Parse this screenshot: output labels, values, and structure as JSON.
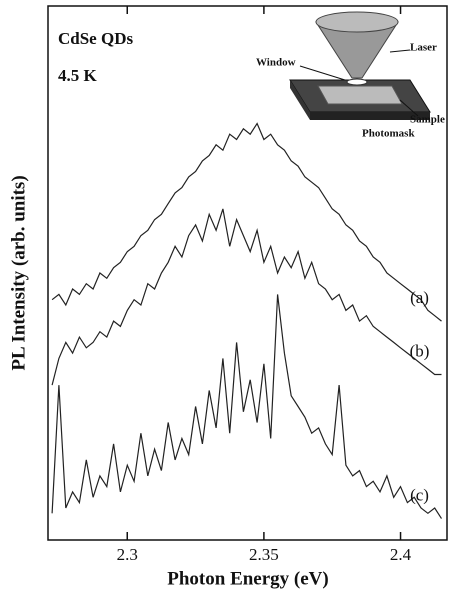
{
  "chart_data": {
    "type": "line",
    "annotations": {
      "sample": "CdSe QDs",
      "temperature": "4.5 K"
    },
    "inset": {
      "window": "Window",
      "laser": "Laser",
      "sample": "Sample",
      "photomask": "Photomask"
    },
    "xlabel": "Photon Energy (eV)",
    "ylabel": "PL Intensity (arb. units)",
    "xlim": [
      2.271,
      2.417
    ],
    "xticks": [
      2.3,
      2.35,
      2.4
    ],
    "ylim": [
      0,
      100
    ],
    "x": [
      2.2725,
      2.275,
      2.2775,
      2.28,
      2.2825,
      2.285,
      2.2875,
      2.29,
      2.2925,
      2.295,
      2.2975,
      2.3,
      2.3025,
      2.305,
      2.3075,
      2.31,
      2.3125,
      2.315,
      2.3175,
      2.32,
      2.3225,
      2.325,
      2.3275,
      2.33,
      2.3325,
      2.335,
      2.3375,
      2.34,
      2.3425,
      2.345,
      2.3475,
      2.35,
      2.3525,
      2.355,
      2.3575,
      2.36,
      2.3625,
      2.365,
      2.3675,
      2.37,
      2.3725,
      2.375,
      2.3775,
      2.38,
      2.3825,
      2.385,
      2.3875,
      2.39,
      2.3925,
      2.395,
      2.3975,
      2.4,
      2.4025,
      2.405,
      2.4075,
      2.41,
      2.4125,
      2.415
    ],
    "series": [
      {
        "name": "(a)",
        "color": "#222222",
        "values": [
          45,
          46,
          44,
          47,
          46,
          48,
          47,
          50,
          49,
          51,
          52,
          54,
          55,
          57,
          58,
          60,
          61,
          63,
          65,
          66,
          68,
          69,
          71,
          72,
          74,
          73,
          76,
          75,
          77,
          76,
          78,
          75,
          76,
          74,
          73,
          71,
          70,
          68,
          67,
          66,
          64,
          62,
          61,
          59,
          58,
          56,
          55,
          53,
          52,
          50,
          49,
          48,
          47,
          46,
          45,
          43,
          42,
          41
        ]
      },
      {
        "name": "(b)",
        "color": "#222222",
        "values": [
          29,
          34,
          37,
          35,
          38,
          36,
          37,
          39,
          38,
          41,
          40,
          43,
          45,
          44,
          48,
          47,
          50,
          52,
          55,
          53,
          57,
          59,
          56,
          61,
          58,
          62,
          55,
          60,
          57,
          54,
          58,
          52,
          55,
          50,
          53,
          51,
          54,
          49,
          52,
          48,
          47,
          45,
          46,
          43,
          44,
          41,
          42,
          40,
          39,
          38,
          37,
          36,
          35,
          34,
          33,
          32,
          31,
          31
        ]
      },
      {
        "name": "(c)",
        "color": "#222222",
        "values": [
          5,
          29,
          6,
          9,
          7,
          15,
          8,
          12,
          10,
          18,
          9,
          14,
          11,
          20,
          12,
          17,
          13,
          22,
          15,
          19,
          16,
          25,
          18,
          28,
          21,
          34,
          20,
          37,
          24,
          30,
          22,
          33,
          19,
          46,
          35,
          27,
          25,
          23,
          20,
          21,
          18,
          16,
          29,
          14,
          12,
          13,
          10,
          11,
          9,
          12,
          8,
          10,
          7,
          8,
          6,
          5,
          6,
          4
        ]
      }
    ]
  }
}
